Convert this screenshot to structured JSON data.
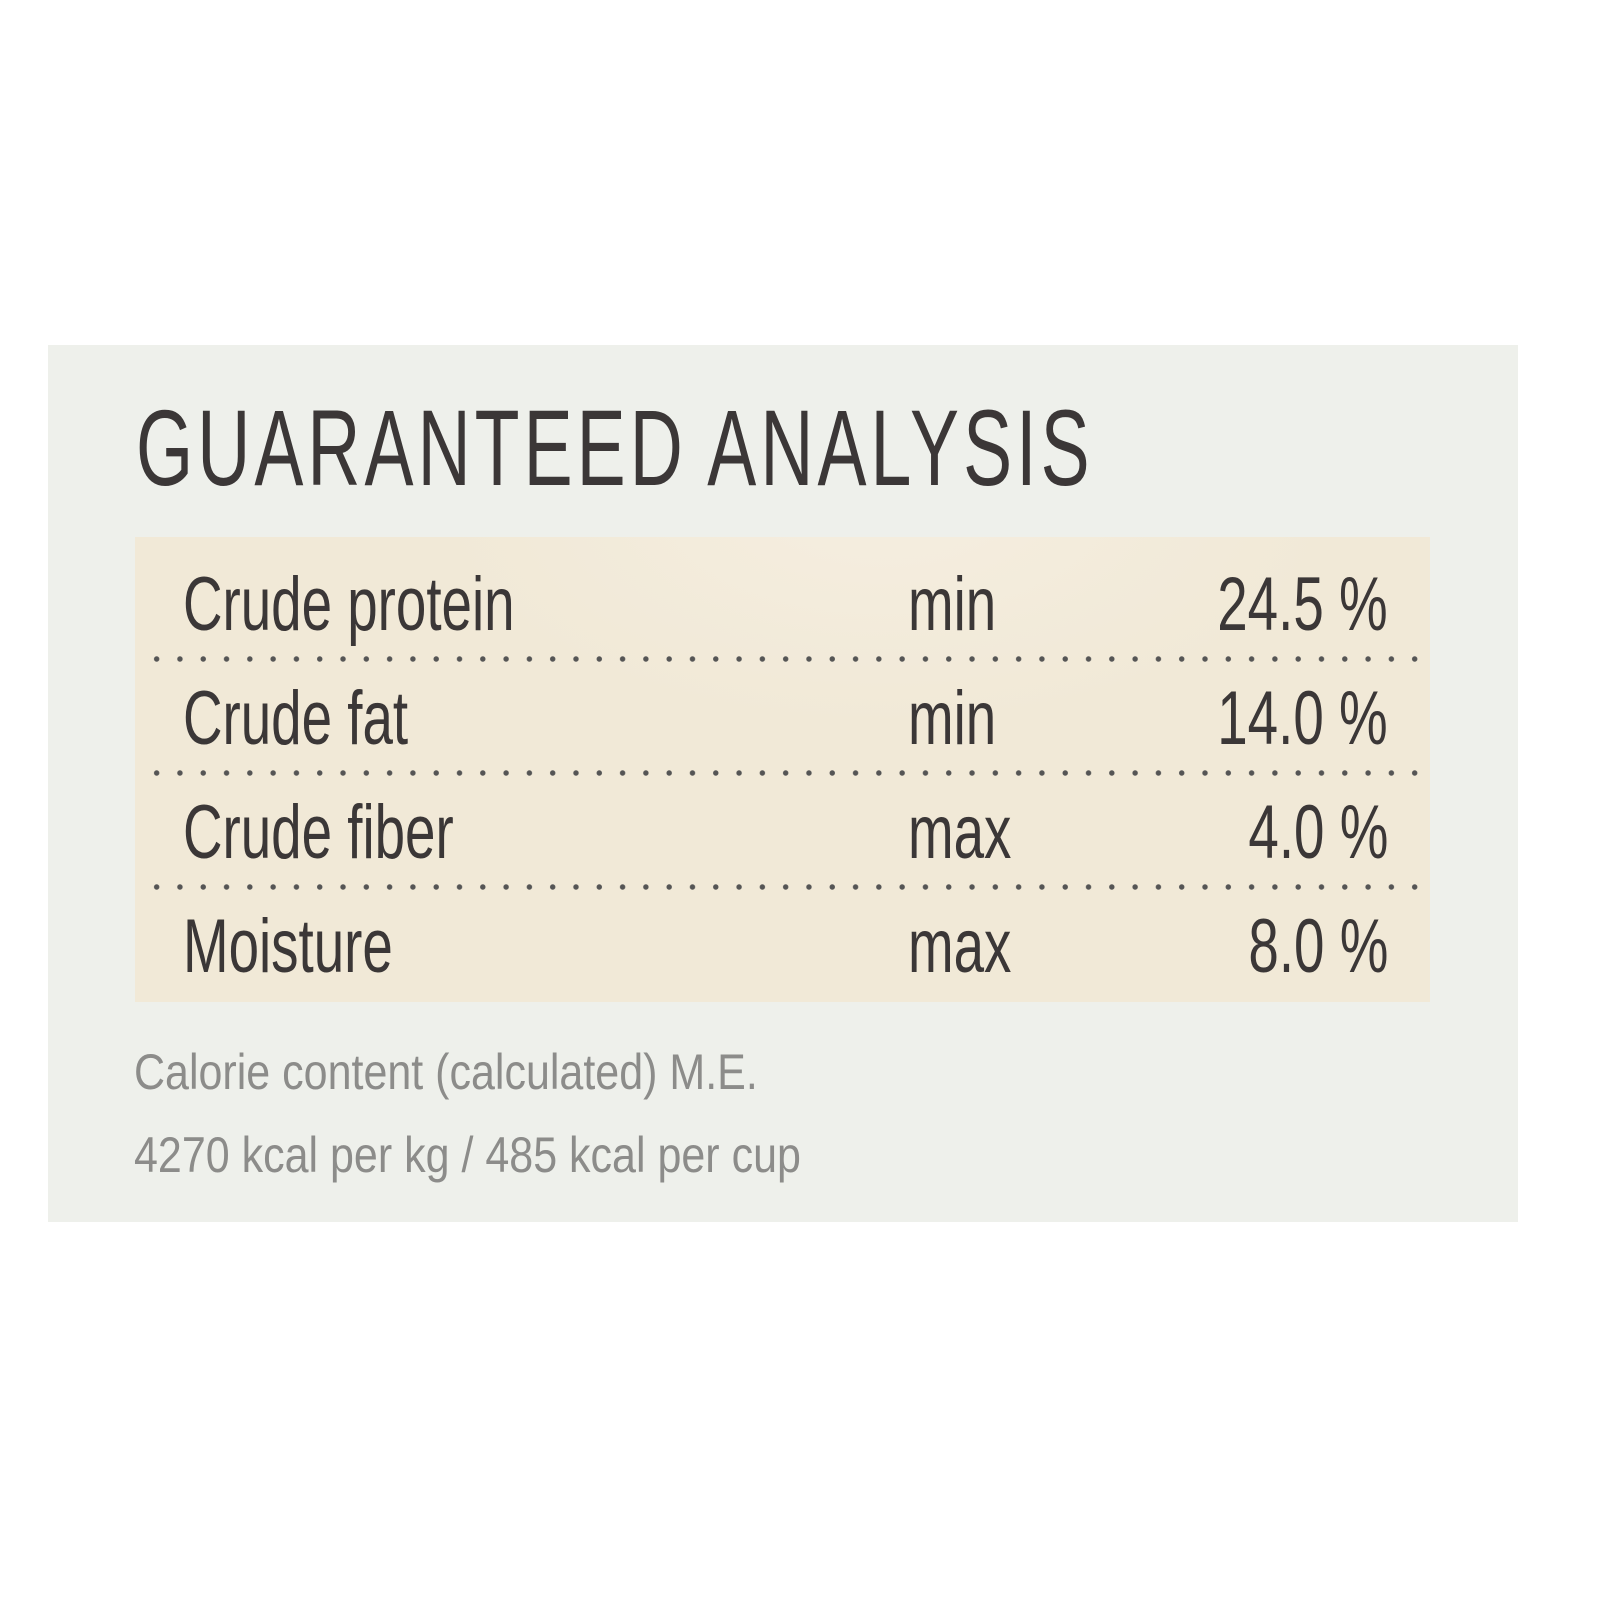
{
  "title": "GUARANTEED ANALYSIS",
  "rows": [
    {
      "nutrient": "Crude protein",
      "qualifier": "min",
      "value": "24.5 %"
    },
    {
      "nutrient": "Crude fat",
      "qualifier": "min",
      "value": "14.0 %"
    },
    {
      "nutrient": "Crude fiber",
      "qualifier": "max",
      "value": "4.0 %"
    },
    {
      "nutrient": "Moisture",
      "qualifier": "max",
      "value": "8.0 %"
    }
  ],
  "calorie": {
    "line1": "Calorie content (calculated) M.E.",
    "line2": "4270 kcal per kg / 485 kcal per cup"
  },
  "colors": {
    "panel": "#eef0eb",
    "table_bg": "#f1e9d7",
    "text": "#3b3737",
    "footnote": "#8c8c8a"
  }
}
